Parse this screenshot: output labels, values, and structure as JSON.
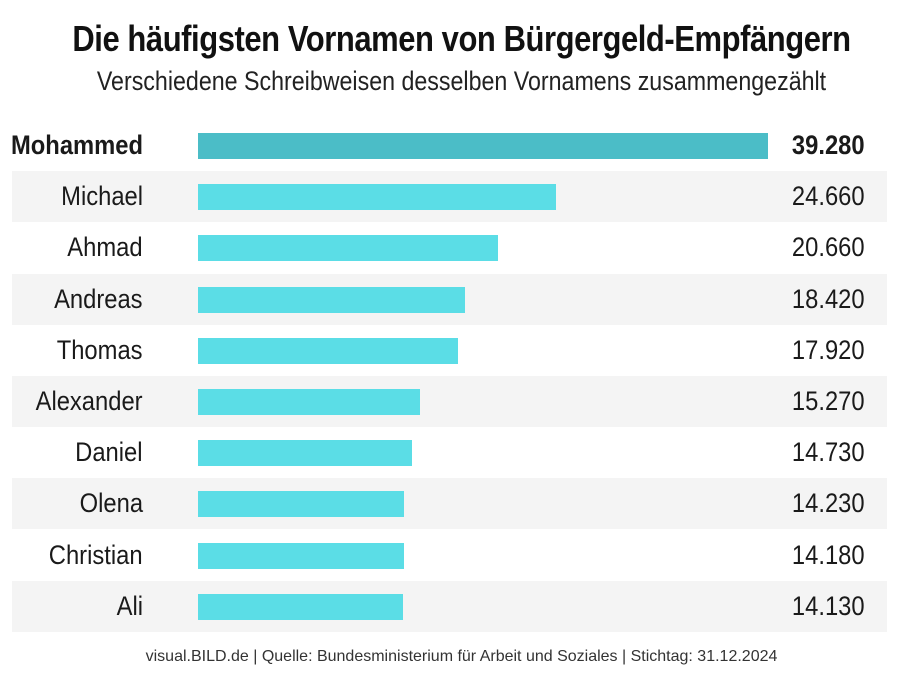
{
  "header": {
    "title": "Die häufigsten Vornamen von Bürgergeld-Empfängern",
    "subtitle": "Verschiedene Schreibweisen desselben Vornamens zusammengezählt"
  },
  "footer": {
    "source": "visual.BILD.de | Quelle: Bundesministerium für Arbeit und Soziales | Stichtag: 31.12.2024"
  },
  "colors": {
    "bar": "#5bdde6",
    "bar_highlight": "#4bbdc7",
    "row_shade": "#f4f4f4"
  },
  "chart_data": {
    "type": "bar",
    "orientation": "horizontal",
    "title": "Die häufigsten Vornamen von Bürgergeld-Empfängern",
    "subtitle": "Verschiedene Schreibweisen desselben Vornamens zusammengezählt",
    "categories": [
      "Mohammed",
      "Michael",
      "Ahmad",
      "Andreas",
      "Thomas",
      "Alexander",
      "Daniel",
      "Olena",
      "Christian",
      "Ali"
    ],
    "values": [
      39280,
      24660,
      20660,
      18420,
      17920,
      15270,
      14730,
      14230,
      14180,
      14130
    ],
    "value_labels": [
      "39.280",
      "24.660",
      "20.660",
      "18.420",
      "17.920",
      "15.270",
      "14.730",
      "14.230",
      "14.180",
      "14.130"
    ],
    "highlight": "Mohammed",
    "xlim": [
      0,
      39280
    ],
    "grid": false,
    "legend": "none"
  }
}
